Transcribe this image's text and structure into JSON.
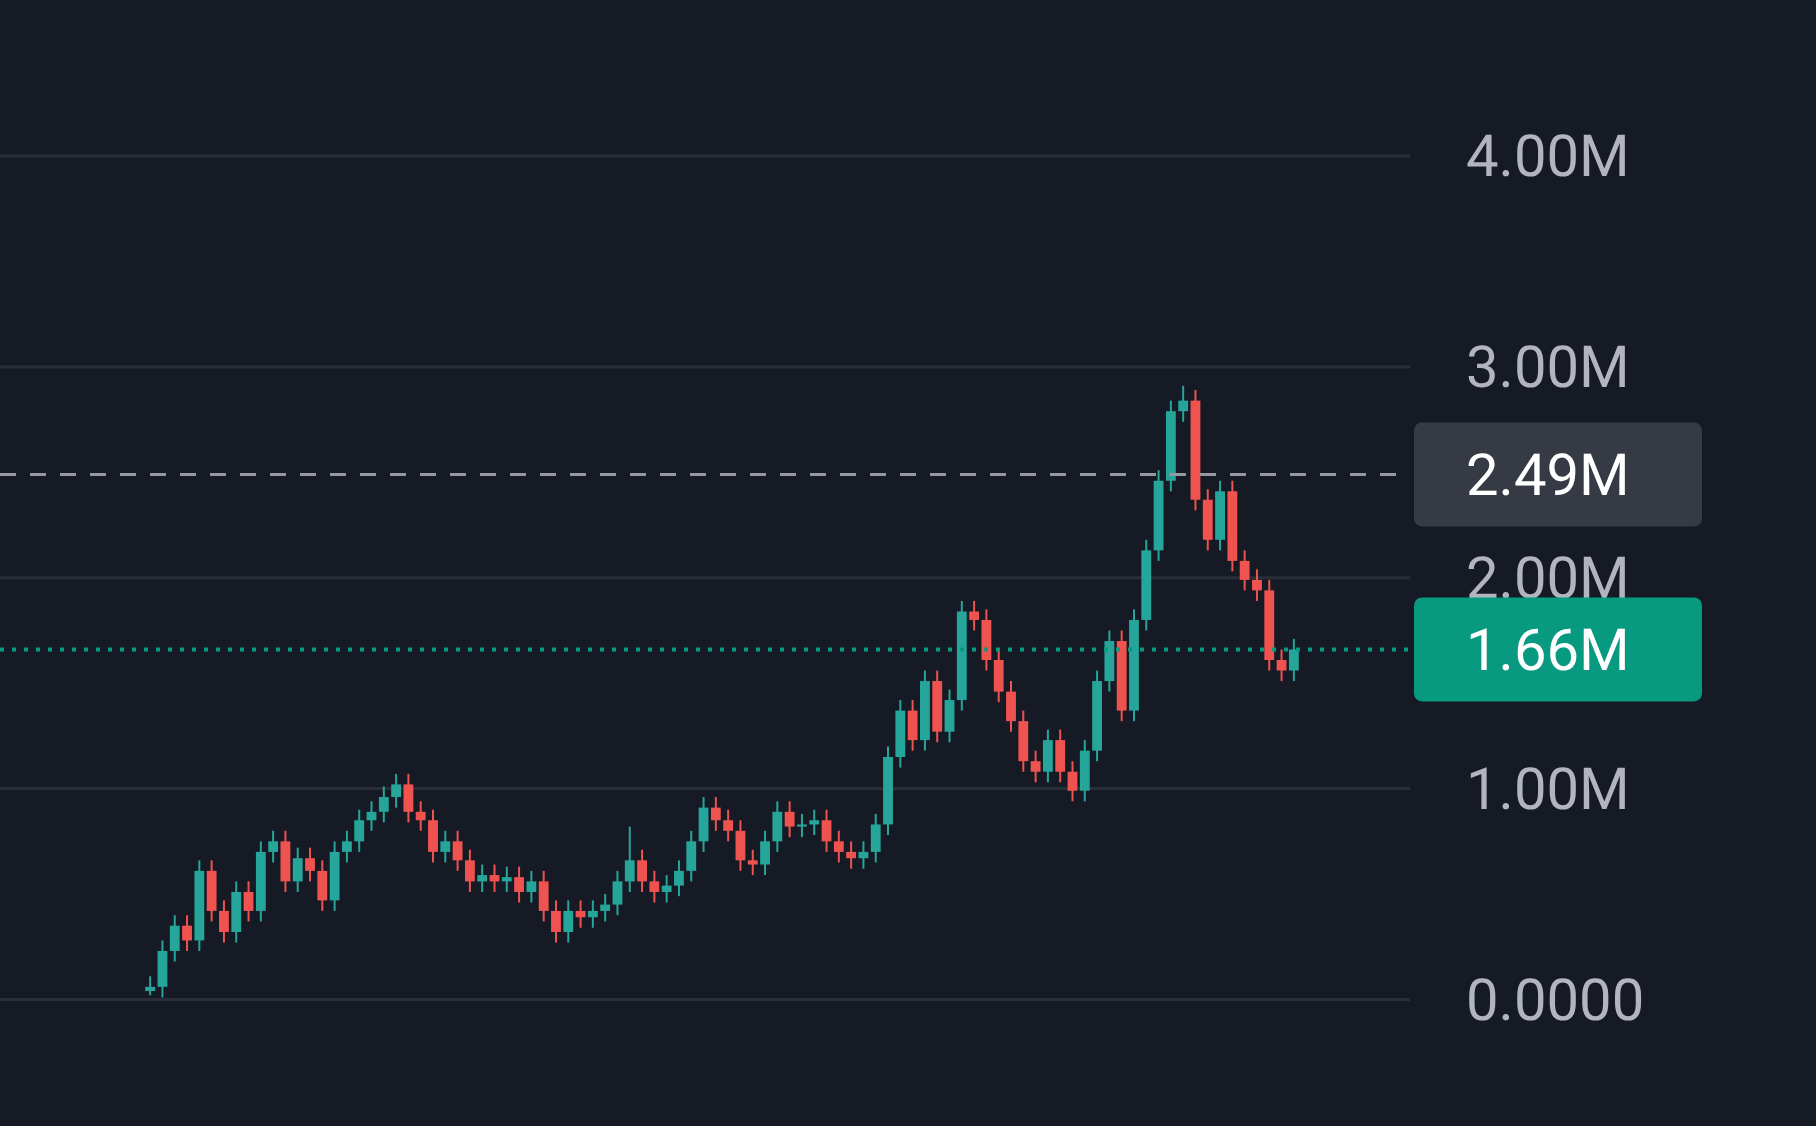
{
  "chart_data": {
    "type": "candlestick",
    "categories": [
      null,
      null,
      null,
      null,
      null,
      null,
      null,
      null,
      null,
      null,
      null,
      null,
      null,
      null,
      null,
      null,
      null,
      null,
      null,
      null,
      null,
      null,
      null,
      null,
      null,
      null,
      null,
      null,
      null,
      null,
      null,
      null,
      null,
      null,
      null,
      null,
      null,
      null,
      null,
      null,
      null,
      null,
      null,
      null,
      null,
      null,
      null,
      null,
      null,
      null,
      null,
      null,
      null,
      null,
      null,
      null,
      null,
      null,
      null,
      null,
      null,
      null,
      null,
      null,
      null,
      null,
      null,
      null,
      null,
      null,
      null,
      null,
      null,
      null,
      null,
      null,
      null,
      null,
      null,
      null,
      null,
      null,
      null,
      null,
      null,
      null,
      null,
      null,
      null,
      null,
      null,
      null,
      null,
      null
    ],
    "ohlc": [
      [
        40000,
        110000,
        20000,
        60000
      ],
      [
        60000,
        280000,
        10000,
        230000
      ],
      [
        230000,
        400000,
        180000,
        350000
      ],
      [
        350000,
        400000,
        230000,
        280000
      ],
      [
        280000,
        660000,
        230000,
        610000
      ],
      [
        610000,
        660000,
        370000,
        420000
      ],
      [
        420000,
        470000,
        270000,
        320000
      ],
      [
        320000,
        560000,
        270000,
        510000
      ],
      [
        510000,
        560000,
        370000,
        420000
      ],
      [
        420000,
        750000,
        370000,
        700000
      ],
      [
        700000,
        800000,
        650000,
        750000
      ],
      [
        750000,
        800000,
        510000,
        560000
      ],
      [
        560000,
        720000,
        510000,
        670000
      ],
      [
        670000,
        720000,
        560000,
        610000
      ],
      [
        610000,
        660000,
        420000,
        470000
      ],
      [
        470000,
        750000,
        420000,
        700000
      ],
      [
        700000,
        800000,
        650000,
        750000
      ],
      [
        750000,
        900000,
        700000,
        850000
      ],
      [
        850000,
        940000,
        800000,
        890000
      ],
      [
        890000,
        1010000,
        840000,
        960000
      ],
      [
        960000,
        1070000,
        910000,
        1020000
      ],
      [
        1020000,
        1070000,
        840000,
        890000
      ],
      [
        890000,
        940000,
        800000,
        850000
      ],
      [
        850000,
        900000,
        650000,
        700000
      ],
      [
        700000,
        800000,
        650000,
        750000
      ],
      [
        750000,
        800000,
        610000,
        660000
      ],
      [
        660000,
        710000,
        510000,
        560000
      ],
      [
        560000,
        640000,
        510000,
        590000
      ],
      [
        590000,
        640000,
        510000,
        560000
      ],
      [
        560000,
        630000,
        510000,
        580000
      ],
      [
        580000,
        630000,
        460000,
        510000
      ],
      [
        510000,
        610000,
        460000,
        560000
      ],
      [
        560000,
        610000,
        370000,
        420000
      ],
      [
        420000,
        470000,
        270000,
        320000
      ],
      [
        320000,
        470000,
        270000,
        420000
      ],
      [
        420000,
        470000,
        340000,
        390000
      ],
      [
        390000,
        470000,
        340000,
        420000
      ],
      [
        420000,
        500000,
        370000,
        450000
      ],
      [
        450000,
        610000,
        400000,
        560000
      ],
      [
        560000,
        820000,
        510000,
        660000
      ],
      [
        660000,
        710000,
        510000,
        560000
      ],
      [
        560000,
        610000,
        460000,
        510000
      ],
      [
        510000,
        590000,
        460000,
        540000
      ],
      [
        540000,
        660000,
        490000,
        610000
      ],
      [
        610000,
        800000,
        560000,
        750000
      ],
      [
        750000,
        960000,
        700000,
        910000
      ],
      [
        910000,
        960000,
        800000,
        850000
      ],
      [
        850000,
        900000,
        750000,
        800000
      ],
      [
        800000,
        850000,
        610000,
        660000
      ],
      [
        660000,
        710000,
        590000,
        640000
      ],
      [
        640000,
        800000,
        590000,
        750000
      ],
      [
        750000,
        940000,
        700000,
        890000
      ],
      [
        890000,
        940000,
        770000,
        820000
      ],
      [
        820000,
        880000,
        770000,
        830000
      ],
      [
        830000,
        900000,
        780000,
        850000
      ],
      [
        850000,
        900000,
        700000,
        750000
      ],
      [
        750000,
        800000,
        650000,
        700000
      ],
      [
        700000,
        750000,
        620000,
        670000
      ],
      [
        670000,
        750000,
        620000,
        700000
      ],
      [
        700000,
        880000,
        650000,
        830000
      ],
      [
        830000,
        1200000,
        780000,
        1150000
      ],
      [
        1150000,
        1420000,
        1100000,
        1370000
      ],
      [
        1370000,
        1420000,
        1180000,
        1230000
      ],
      [
        1230000,
        1560000,
        1180000,
        1510000
      ],
      [
        1510000,
        1560000,
        1220000,
        1270000
      ],
      [
        1270000,
        1470000,
        1220000,
        1420000
      ],
      [
        1420000,
        1890000,
        1370000,
        1840000
      ],
      [
        1840000,
        1890000,
        1750000,
        1800000
      ],
      [
        1800000,
        1850000,
        1560000,
        1610000
      ],
      [
        1610000,
        1660000,
        1410000,
        1460000
      ],
      [
        1460000,
        1510000,
        1270000,
        1320000
      ],
      [
        1320000,
        1370000,
        1080000,
        1130000
      ],
      [
        1130000,
        1180000,
        1030000,
        1080000
      ],
      [
        1080000,
        1280000,
        1030000,
        1230000
      ],
      [
        1230000,
        1280000,
        1030000,
        1080000
      ],
      [
        1080000,
        1130000,
        940000,
        990000
      ],
      [
        990000,
        1230000,
        940000,
        1180000
      ],
      [
        1180000,
        1560000,
        1130000,
        1510000
      ],
      [
        1510000,
        1750000,
        1460000,
        1700000
      ],
      [
        1700000,
        1750000,
        1320000,
        1370000
      ],
      [
        1370000,
        1850000,
        1320000,
        1800000
      ],
      [
        1800000,
        2180000,
        1750000,
        2130000
      ],
      [
        2130000,
        2510000,
        2080000,
        2460000
      ],
      [
        2460000,
        2840000,
        2410000,
        2790000
      ],
      [
        2790000,
        2910000,
        2740000,
        2840000
      ],
      [
        2840000,
        2890000,
        2320000,
        2370000
      ],
      [
        2370000,
        2420000,
        2130000,
        2180000
      ],
      [
        2180000,
        2460000,
        2130000,
        2410000
      ],
      [
        2410000,
        2460000,
        2030000,
        2080000
      ],
      [
        2080000,
        2130000,
        1940000,
        1990000
      ],
      [
        1990000,
        2040000,
        1890000,
        1940000
      ],
      [
        1940000,
        1990000,
        1560000,
        1610000
      ],
      [
        1610000,
        1660000,
        1510000,
        1560000
      ],
      [
        1560000,
        1710000,
        1510000,
        1660000
      ]
    ],
    "colors": [
      "#26a69a",
      "#26a69a",
      "#26a69a",
      "#ef5350",
      "#26a69a",
      "#ef5350",
      "#ef5350",
      "#26a69a",
      "#ef5350",
      "#26a69a",
      "#26a69a",
      "#ef5350",
      "#26a69a",
      "#ef5350",
      "#ef5350",
      "#26a69a",
      "#26a69a",
      "#26a69a",
      "#26a69a",
      "#26a69a",
      "#26a69a",
      "#ef5350",
      "#ef5350",
      "#ef5350",
      "#26a69a",
      "#ef5350",
      "#ef5350",
      "#26a69a",
      "#ef5350",
      "#26a69a",
      "#ef5350",
      "#26a69a",
      "#ef5350",
      "#ef5350",
      "#26a69a",
      "#ef5350",
      "#26a69a",
      "#26a69a",
      "#26a69a",
      "#26a69a",
      "#ef5350",
      "#ef5350",
      "#26a69a",
      "#26a69a",
      "#26a69a",
      "#26a69a",
      "#ef5350",
      "#ef5350",
      "#ef5350",
      "#ef5350",
      "#26a69a",
      "#26a69a",
      "#ef5350",
      "#26a69a",
      "#26a69a",
      "#ef5350",
      "#ef5350",
      "#ef5350",
      "#26a69a",
      "#26a69a",
      "#26a69a",
      "#26a69a",
      "#ef5350",
      "#26a69a",
      "#ef5350",
      "#26a69a",
      "#26a69a",
      "#ef5350",
      "#ef5350",
      "#ef5350",
      "#ef5350",
      "#ef5350",
      "#ef5350",
      "#26a69a",
      "#ef5350",
      "#ef5350",
      "#26a69a",
      "#26a69a",
      "#26a69a",
      "#ef5350",
      "#26a69a",
      "#26a69a",
      "#26a69a",
      "#26a69a",
      "#26a69a",
      "#ef5350",
      "#ef5350",
      "#26a69a",
      "#ef5350",
      "#ef5350",
      "#ef5350",
      "#ef5350",
      "#ef5350",
      "#26a69a"
    ],
    "ylim": [
      -600000,
      4740000
    ],
    "yticks": [
      {
        "value": 0,
        "label": "0.0000"
      },
      {
        "value": 1000000,
        "label": "1.00M"
      },
      {
        "value": 2000000,
        "label": "2.00M"
      },
      {
        "value": 3000000,
        "label": "3.00M"
      },
      {
        "value": 4000000,
        "label": "4.00M"
      }
    ],
    "grid": "y",
    "ref_lines": [
      {
        "axis": "y",
        "value": 2490000,
        "label": "2.49M",
        "color": "#9598a1",
        "line_style": "dashed"
      },
      {
        "axis": "y",
        "value": 1660000,
        "label": "1.66M",
        "color": "#089981",
        "line_style": "dotted"
      }
    ]
  }
}
